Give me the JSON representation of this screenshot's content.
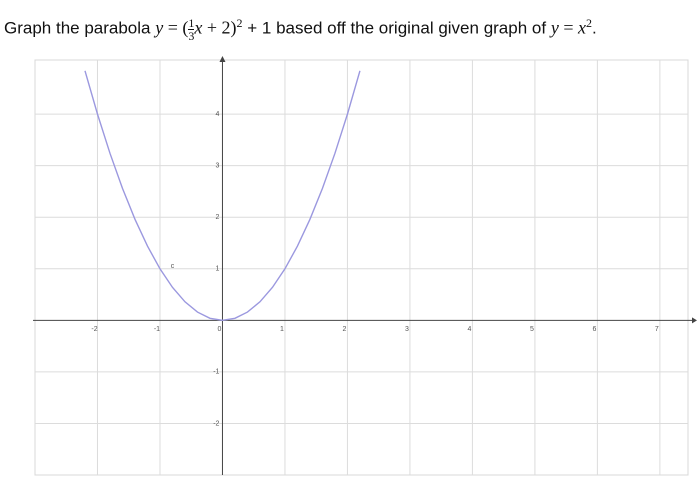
{
  "question": [
    "Graph the parabola ",
    "y",
    " = (",
    "1",
    "3",
    "x",
    " + 2)",
    "2",
    " + 1 based off the original given graph of ",
    "y",
    " = ",
    "x",
    "2",
    "."
  ],
  "chart_data": {
    "type": "line",
    "x": [
      -2.2,
      -2,
      -1.8,
      -1.6,
      -1.4,
      -1.2,
      -1,
      -0.8,
      -0.6,
      -0.4,
      -0.2,
      0,
      0.2,
      0.4,
      0.6,
      0.8,
      1,
      1.2,
      1.4,
      1.6,
      1.8,
      2,
      2.2
    ],
    "series": [
      {
        "color": "#9b98df",
        "values": [
          4.84,
          4,
          3.24,
          2.56,
          1.96,
          1.44,
          1,
          0.64,
          0.36,
          0.16,
          0.04,
          0,
          0.04,
          0.16,
          0.36,
          0.64,
          1,
          1.44,
          1.96,
          2.56,
          3.24,
          4,
          4.84
        ]
      }
    ],
    "annotations": [
      {
        "text": "c",
        "x": -0.8,
        "y": 1.05
      }
    ],
    "xlim": [
      -3,
      7.45
    ],
    "ylim": [
      -3,
      5.05
    ],
    "xticks": [
      -2,
      -1,
      0,
      1,
      2,
      3,
      4,
      5,
      6,
      7
    ],
    "yticks": [
      -2,
      -1,
      1,
      2,
      3,
      4
    ],
    "grid": true
  }
}
